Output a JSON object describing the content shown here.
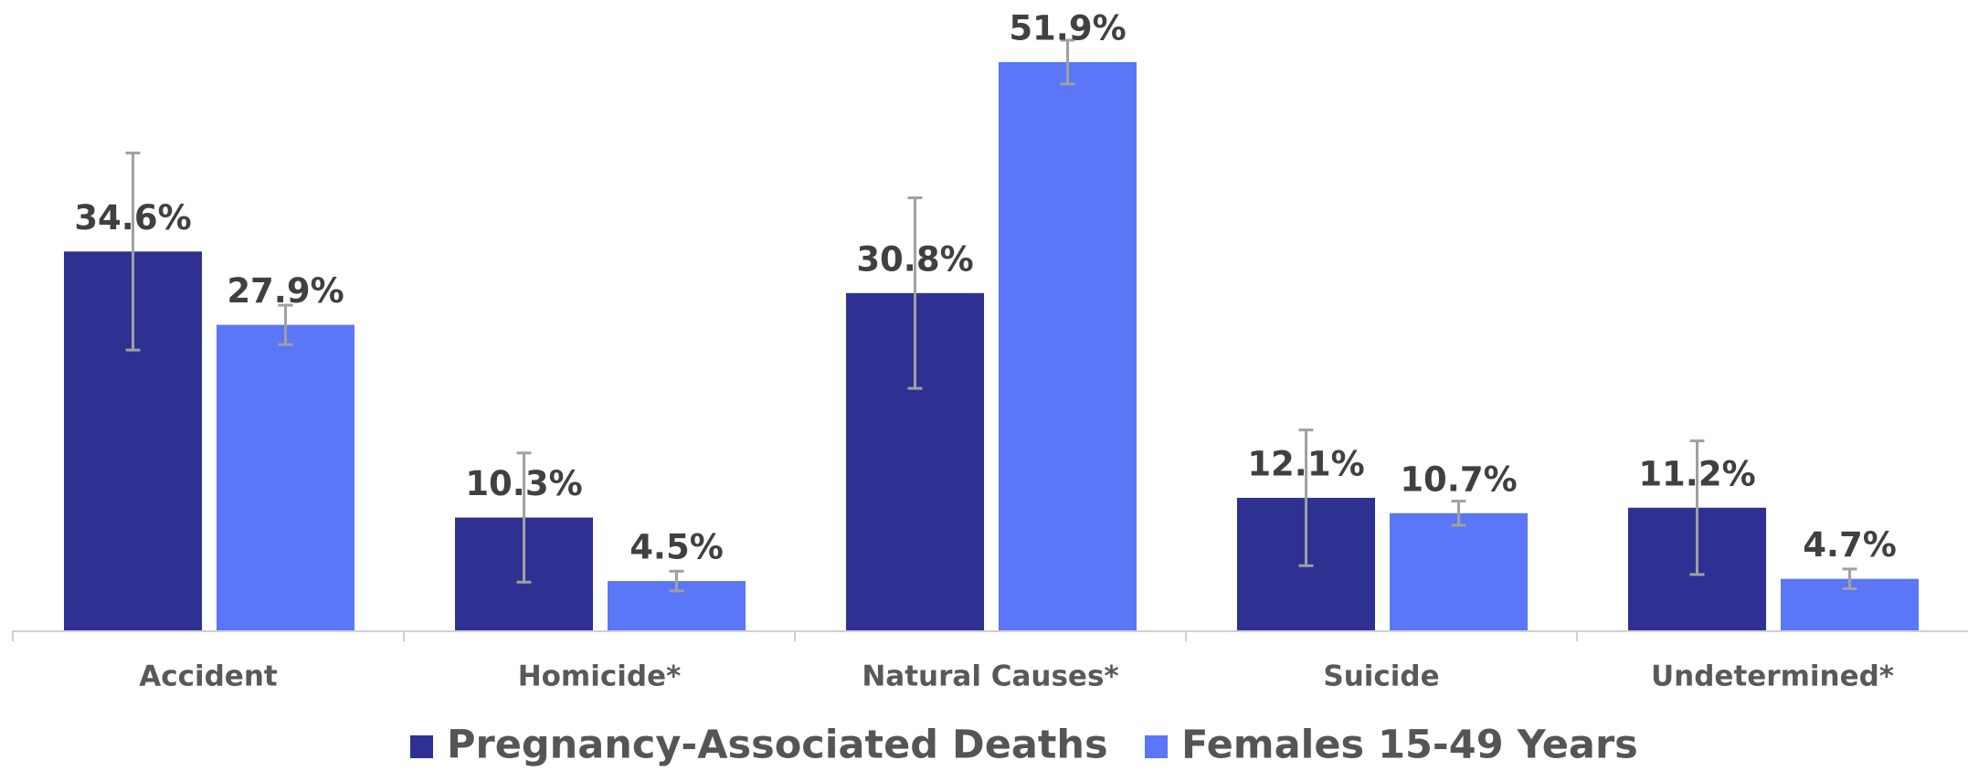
{
  "chart_data": {
    "type": "bar",
    "categories": [
      "Accident",
      "Homicide*",
      "Natural Causes*",
      "Suicide",
      "Undetermined*"
    ],
    "series": [
      {
        "name": "Pregnancy-Associated Deaths",
        "color": "#2e3192",
        "values": [
          34.6,
          10.3,
          30.8,
          12.1,
          11.2
        ],
        "value_labels": [
          "34.6%",
          "10.3%",
          "30.8%",
          "12.1%",
          "11.2%"
        ],
        "errors": [
          9.0,
          5.9,
          8.7,
          6.2,
          6.1
        ]
      },
      {
        "name": "Females 15-49 Years",
        "color": "#5b76f7",
        "values": [
          27.9,
          4.5,
          51.9,
          10.7,
          4.7
        ],
        "value_labels": [
          "27.9%",
          "4.5%",
          "51.9%",
          "10.7%",
          "4.7%"
        ],
        "errors": [
          1.8,
          0.9,
          2.0,
          1.1,
          0.9
        ]
      }
    ],
    "error_color": "#a0a0a0",
    "legend": "bottom"
  }
}
